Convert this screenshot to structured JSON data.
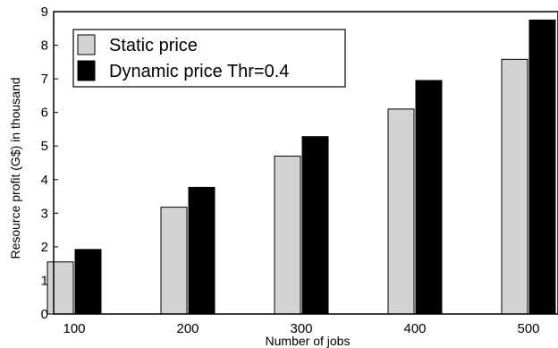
{
  "chart_data": {
    "type": "bar",
    "categories": [
      "100",
      "200",
      "300",
      "400",
      "500"
    ],
    "series": [
      {
        "name": "Static price",
        "values": [
          1.55,
          3.18,
          4.7,
          6.1,
          7.58
        ],
        "color": "#d3d3d3"
      },
      {
        "name": "Dynamic price Thr=0.4",
        "values": [
          1.92,
          3.77,
          5.28,
          6.95,
          8.75
        ],
        "color": "#000000"
      }
    ],
    "title": "",
    "xlabel": "Number of jobs",
    "ylabel": "Resource profit (G$) in thousand",
    "ylim": [
      0,
      9
    ],
    "yticks": [
      "0",
      "1",
      "2",
      "3",
      "4",
      "5",
      "6",
      "7",
      "8",
      "9"
    ],
    "grid": false,
    "legend_position": "top-left"
  }
}
